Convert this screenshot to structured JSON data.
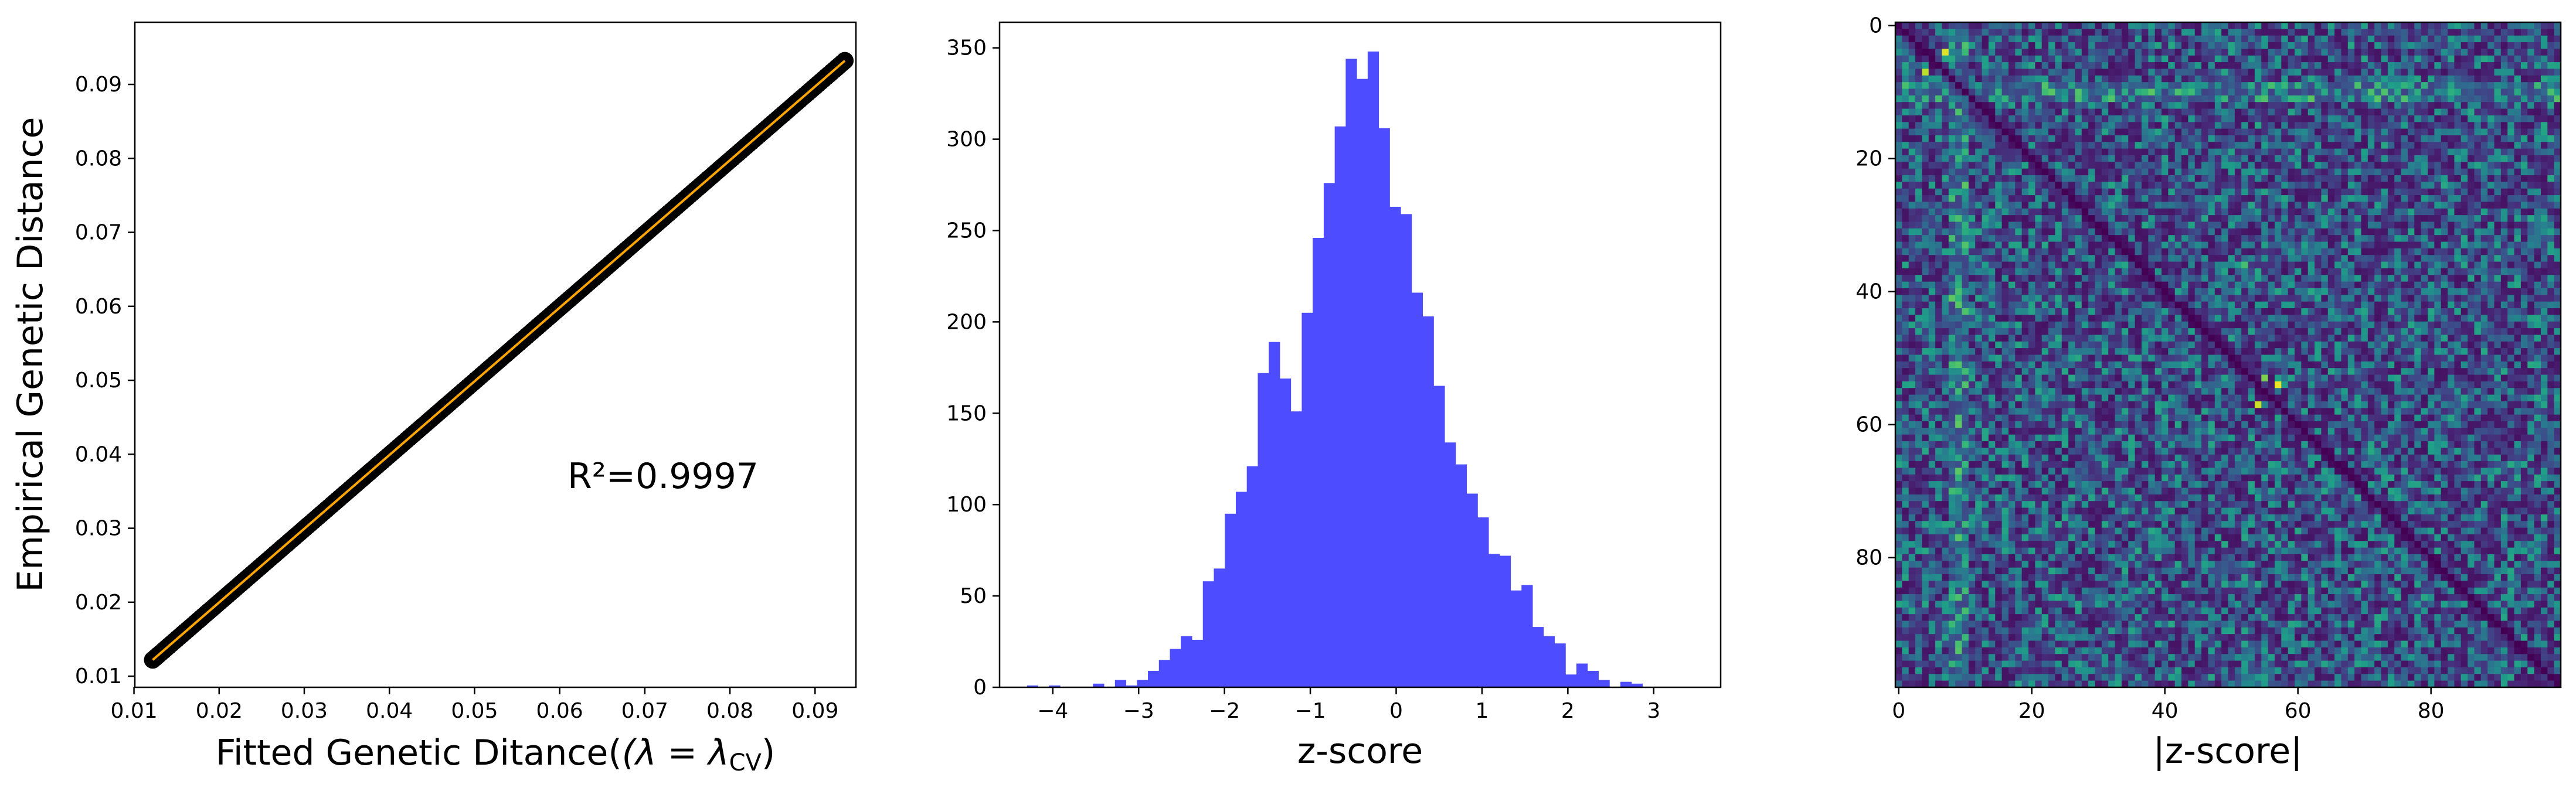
{
  "chart_data": [
    {
      "type": "scatter",
      "xlabel": "Fitted Genetic Ditance(",
      "xlabel_math": "(λ = λ",
      "xlabel_sub": "CV",
      "xlabel_close": ")",
      "ylabel": "Empirical Genetic Distance",
      "annotation": "R²=0.9997",
      "xlim": [
        0.0101,
        0.0948
      ],
      "ylim": [
        0.0085,
        0.0984
      ],
      "xticks": [
        0.01,
        0.02,
        0.03,
        0.04,
        0.05,
        0.06,
        0.07,
        0.08,
        0.09
      ],
      "xtick_labels": [
        "0.01",
        "0.02",
        "0.03",
        "0.04",
        "0.05",
        "0.06",
        "0.07",
        "0.08",
        "0.09"
      ],
      "yticks": [
        0.01,
        0.02,
        0.03,
        0.04,
        0.05,
        0.06,
        0.07,
        0.08,
        0.09
      ],
      "ytick_labels": [
        "0.01",
        "0.02",
        "0.03",
        "0.04",
        "0.05",
        "0.06",
        "0.07",
        "0.08",
        "0.09"
      ],
      "x_range": [
        0.0122,
        0.0935
      ],
      "y_range": [
        0.0122,
        0.0932
      ],
      "fit_line": {
        "x": [
          0.0122,
          0.0935
        ],
        "y": [
          0.0122,
          0.0932
        ]
      },
      "marker_color": "#000000",
      "line_color": "#ffa500"
    },
    {
      "type": "bar",
      "xlabel": "z-score",
      "ylabel": "",
      "xlim": [
        -4.62,
        3.78
      ],
      "ylim": [
        0,
        364
      ],
      "xticks": [
        -4,
        -3,
        -2,
        -1,
        0,
        1,
        2,
        3
      ],
      "xtick_labels": [
        "−4",
        "−3",
        "−2",
        "−1",
        "0",
        "1",
        "2",
        "3"
      ],
      "yticks": [
        0,
        50,
        100,
        150,
        200,
        250,
        300,
        350
      ],
      "ytick_labels": [
        "0",
        "50",
        "100",
        "150",
        "200",
        "250",
        "300",
        "350"
      ],
      "bin_start": -4.3,
      "bin_width": 0.128,
      "values": [
        1,
        0,
        1,
        0,
        0,
        0,
        2,
        0,
        4,
        1,
        4,
        9,
        15,
        21,
        28,
        26,
        58,
        65,
        95,
        107,
        121,
        172,
        189,
        169,
        151,
        205,
        246,
        276,
        307,
        344,
        333,
        348,
        306,
        263,
        259,
        216,
        203,
        165,
        134,
        122,
        106,
        93,
        73,
        72,
        53,
        56,
        33,
        28,
        24,
        7,
        13,
        9,
        4,
        0,
        3,
        2
      ],
      "color": "#4d4dff"
    },
    {
      "type": "heatmap",
      "xlabel": "|z-score|",
      "ylabel": "",
      "rows": 100,
      "cols": 100,
      "xticks": [
        0,
        20,
        40,
        60,
        80
      ],
      "xtick_labels": [
        "0",
        "20",
        "40",
        "60",
        "80"
      ],
      "yticks": [
        0,
        20,
        40,
        60,
        80
      ],
      "ytick_labels": [
        "0",
        "20",
        "40",
        "60",
        "80"
      ],
      "colormap": "viridis",
      "colormap_stops": [
        "#440154",
        "#482878",
        "#3e4989",
        "#31688e",
        "#26828e",
        "#1f9e89",
        "#35b779",
        "#6ece58",
        "#b5de2b",
        "#fde725"
      ],
      "diagonal_value": 0.0,
      "hot_cells": [
        {
          "row": 4,
          "col": 7,
          "value": 0.95
        },
        {
          "row": 7,
          "col": 4,
          "value": 0.9
        },
        {
          "row": 54,
          "col": 57,
          "value": 0.97
        },
        {
          "row": 57,
          "col": 54,
          "value": 0.92
        },
        {
          "row": 53,
          "col": 55,
          "value": 0.8
        },
        {
          "row": 9,
          "col": 60,
          "value": 0.65
        },
        {
          "row": 10,
          "col": 75,
          "value": 0.6
        },
        {
          "row": 36,
          "col": 52,
          "value": 0.7
        }
      ],
      "bright_rows": [
        9,
        10,
        11
      ],
      "bright_cols": [
        8,
        9,
        10
      ]
    }
  ]
}
